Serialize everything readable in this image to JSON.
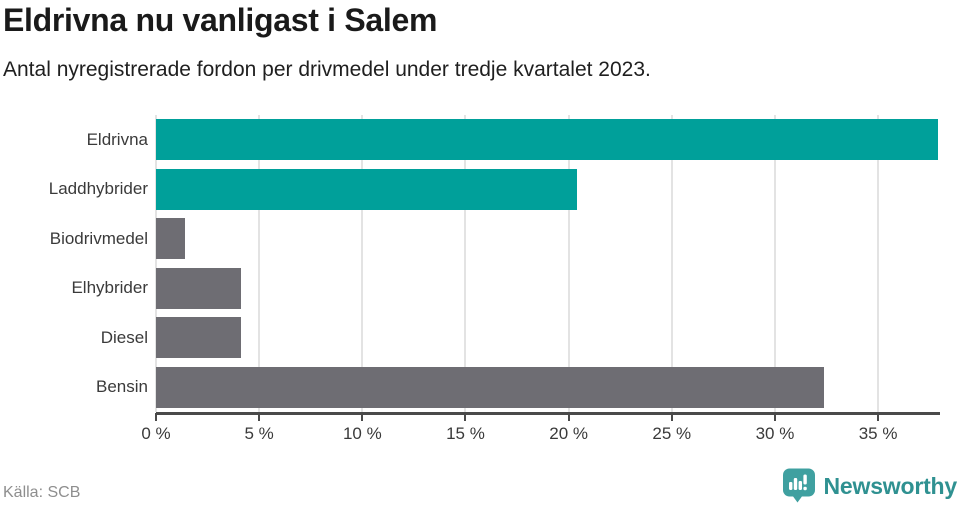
{
  "header": {
    "title": "Eldrivna nu vanligast i Salem",
    "subtitle": "Antal nyregistrerade fordon per drivmedel under tredje kvartalet 2023."
  },
  "chart_data": {
    "type": "bar",
    "orientation": "horizontal",
    "title": "Eldrivna nu vanligast i Salem",
    "subtitle": "Antal nyregistrerade fordon per drivmedel under tredje kvartalet 2023.",
    "categories": [
      "Eldrivna",
      "Laddhybrider",
      "Biodrivmedel",
      "Elhybrider",
      "Diesel",
      "Bensin"
    ],
    "values": [
      37.9,
      20.4,
      1.4,
      4.1,
      4.1,
      32.4
    ],
    "unit": "%",
    "bar_colors": [
      "#00A09A",
      "#00A09A",
      "#6E6D73",
      "#6E6D73",
      "#6E6D73",
      "#6E6D73"
    ],
    "highlight_color": "#00A09A",
    "neutral_color": "#6E6D73",
    "xlim": [
      0,
      38
    ],
    "xticks": [
      {
        "value": 0,
        "label": "0 %"
      },
      {
        "value": 5,
        "label": "5 %"
      },
      {
        "value": 10,
        "label": "10 %"
      },
      {
        "value": 15,
        "label": "15 %"
      },
      {
        "value": 20,
        "label": "20 %"
      },
      {
        "value": 25,
        "label": "25 %"
      },
      {
        "value": 30,
        "label": "30 %"
      },
      {
        "value": 35,
        "label": "35 %"
      }
    ],
    "grid": "vertical",
    "legend": "none"
  },
  "footer": {
    "source": "Källa: SCB",
    "brand_name": "Newsworthy"
  },
  "colors": {
    "grid": "#E3E3E3",
    "axis": "#4A4A4A",
    "title_text": "#1A1A1A",
    "label_text": "#3A3A3A",
    "source_text": "#8E8E8E",
    "logo_teal": "#3FA0A0",
    "logo_text_teal": "#2F9191"
  }
}
